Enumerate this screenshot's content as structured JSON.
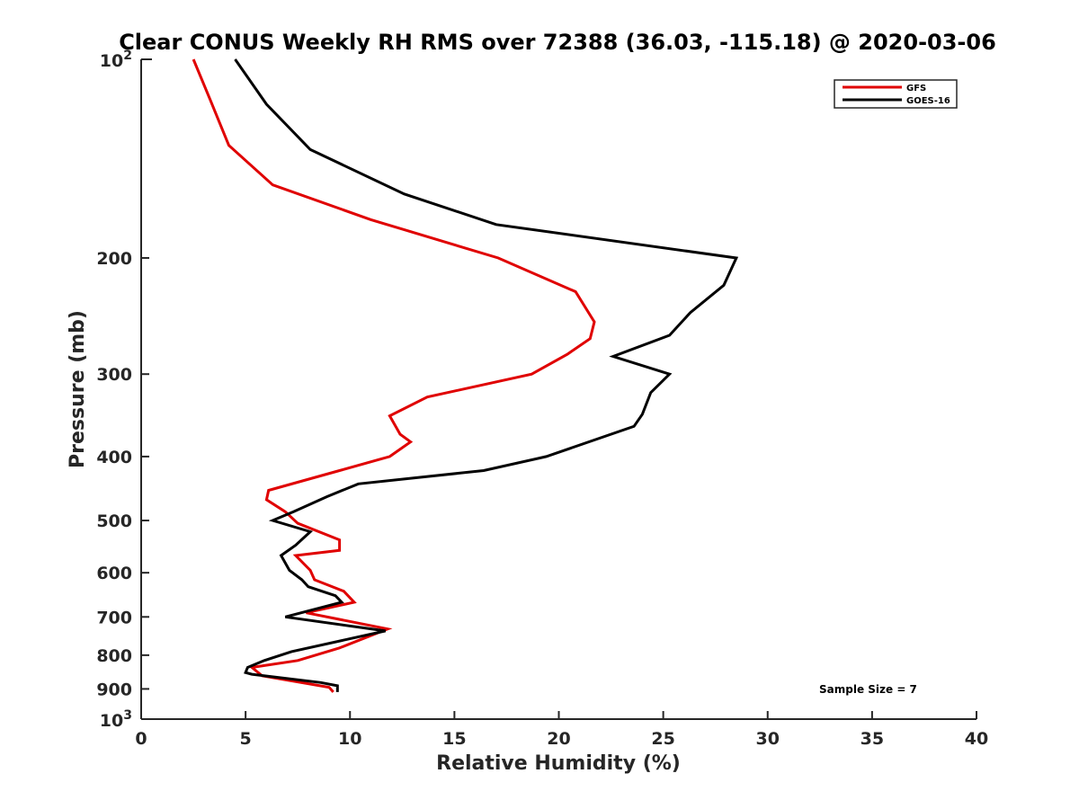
{
  "chart_data": {
    "type": "line",
    "title": "Clear CONUS Weekly RH RMS over 72388 (36.03, -115.18) @ 2020-03-06",
    "xlabel": "Relative Humidity (%)",
    "ylabel": "Pressure (mb)",
    "xlim": [
      0,
      40
    ],
    "ylim": [
      100,
      1000
    ],
    "y_scale": "log",
    "y_reversed": true,
    "x_ticks": [
      "0",
      "5",
      "10",
      "15",
      "20",
      "25",
      "30",
      "35",
      "40"
    ],
    "y_ticks": [
      {
        "value": 200,
        "label": "200"
      },
      {
        "value": 300,
        "label": "300"
      },
      {
        "value": 400,
        "label": "400"
      },
      {
        "value": 500,
        "label": "500"
      },
      {
        "value": 600,
        "label": "600"
      },
      {
        "value": 700,
        "label": "700"
      },
      {
        "value": 800,
        "label": "800"
      },
      {
        "value": 900,
        "label": "900"
      }
    ],
    "y_decade_labels": [
      {
        "value": 100,
        "base": "10",
        "exp": "2"
      },
      {
        "value": 1000,
        "base": "10",
        "exp": "3"
      }
    ],
    "grid": false,
    "legend_position": "top-right",
    "annotation": "Sample Size = 7",
    "series": [
      {
        "name": "GFS",
        "color": "#e00000",
        "points": [
          [
            2.5,
            100
          ],
          [
            3.3,
            115
          ],
          [
            4.2,
            135
          ],
          [
            6.3,
            155
          ],
          [
            11.0,
            175
          ],
          [
            17.1,
            200
          ],
          [
            20.8,
            225
          ],
          [
            21.7,
            250
          ],
          [
            21.5,
            265
          ],
          [
            20.4,
            280
          ],
          [
            18.7,
            300
          ],
          [
            13.7,
            325
          ],
          [
            11.9,
            347
          ],
          [
            12.4,
            370
          ],
          [
            12.9,
            380
          ],
          [
            11.9,
            400
          ],
          [
            9.5,
            420
          ],
          [
            6.1,
            450
          ],
          [
            6.0,
            465
          ],
          [
            6.9,
            485
          ],
          [
            7.5,
            505
          ],
          [
            9.5,
            535
          ],
          [
            9.5,
            555
          ],
          [
            7.4,
            565
          ],
          [
            8.1,
            595
          ],
          [
            8.3,
            615
          ],
          [
            9.7,
            640
          ],
          [
            10.2,
            665
          ],
          [
            7.9,
            690
          ],
          [
            11.8,
            730
          ],
          [
            9.5,
            780
          ],
          [
            7.5,
            815
          ],
          [
            5.3,
            835
          ],
          [
            5.8,
            860
          ],
          [
            9.0,
            895
          ],
          [
            9.2,
            910
          ]
        ]
      },
      {
        "name": "GOES-16",
        "color": "#000000",
        "points": [
          [
            4.5,
            100
          ],
          [
            6.0,
            117
          ],
          [
            8.1,
            137
          ],
          [
            12.6,
            160
          ],
          [
            17.0,
            178
          ],
          [
            28.5,
            200
          ],
          [
            27.9,
            220
          ],
          [
            26.3,
            242
          ],
          [
            25.3,
            262
          ],
          [
            22.6,
            282
          ],
          [
            25.3,
            300
          ],
          [
            24.4,
            320
          ],
          [
            24.0,
            345
          ],
          [
            23.6,
            360
          ],
          [
            19.4,
            400
          ],
          [
            16.4,
            420
          ],
          [
            10.4,
            440
          ],
          [
            8.9,
            460
          ],
          [
            7.3,
            485
          ],
          [
            6.3,
            500
          ],
          [
            8.1,
            520
          ],
          [
            7.4,
            545
          ],
          [
            6.7,
            565
          ],
          [
            7.1,
            595
          ],
          [
            7.7,
            615
          ],
          [
            8.0,
            630
          ],
          [
            9.3,
            650
          ],
          [
            9.6,
            665
          ],
          [
            6.9,
            700
          ],
          [
            11.7,
            735
          ],
          [
            7.2,
            790
          ],
          [
            5.9,
            815
          ],
          [
            5.1,
            835
          ],
          [
            5.0,
            850
          ],
          [
            5.3,
            855
          ],
          [
            8.6,
            880
          ],
          [
            9.4,
            890
          ],
          [
            9.4,
            910
          ]
        ]
      }
    ]
  }
}
